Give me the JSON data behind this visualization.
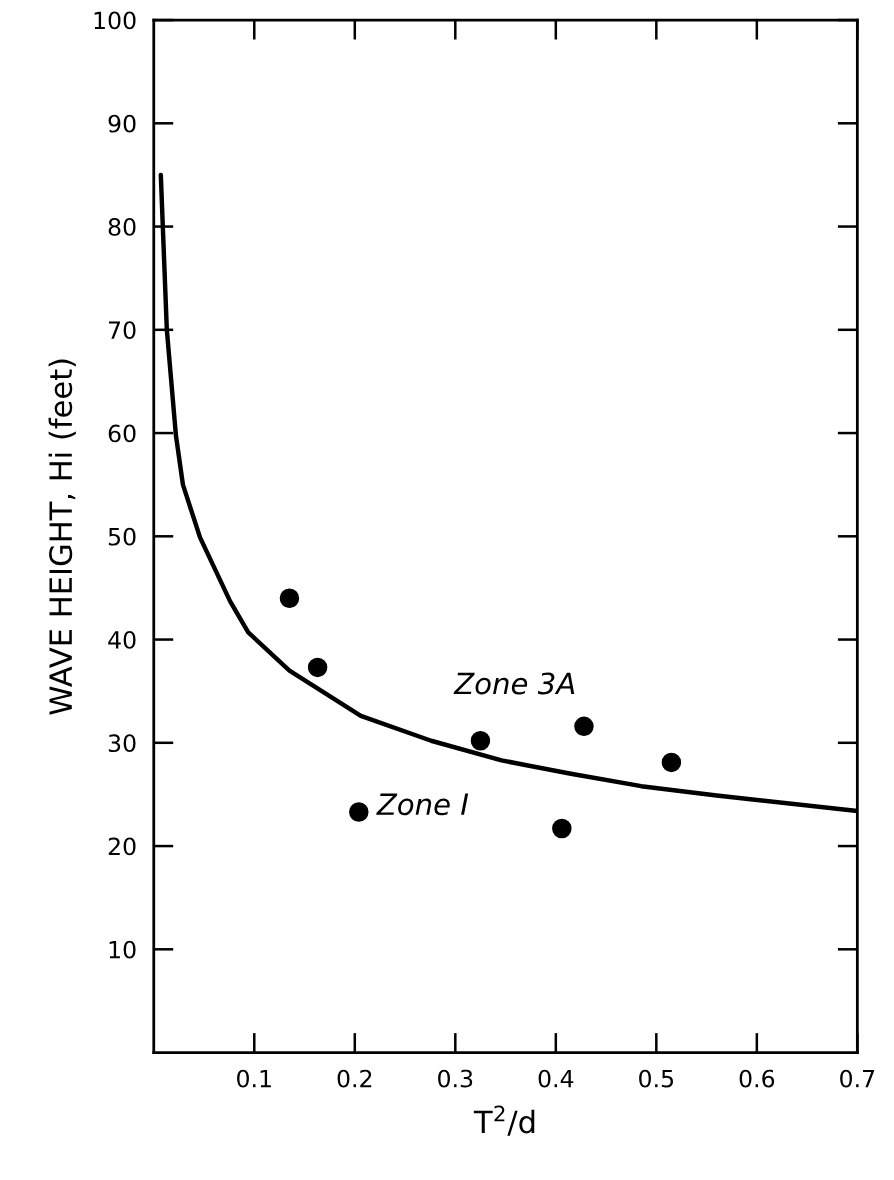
{
  "chart_data": {
    "type": "scatter",
    "xlabel": "T$^{2}$/d",
    "ylabel": "WAVE HEIGHT, Hi (feet)",
    "xlim": [
      0,
      0.7
    ],
    "ylim": [
      0,
      100
    ],
    "xticks": [
      0.1,
      0.2,
      0.3,
      0.4,
      0.5,
      0.6,
      0.7
    ],
    "yticks": [
      10,
      20,
      30,
      40,
      50,
      60,
      70,
      80,
      90,
      100
    ],
    "series": [
      {
        "color": "#000000",
        "marker": "circle",
        "x": [
          0.135,
          0.163,
          0.204,
          0.325,
          0.406,
          0.428,
          0.515
        ],
        "values": [
          44.0,
          37.3,
          23.3,
          30.2,
          21.7,
          31.6,
          28.1
        ]
      },
      {
        "type": "line",
        "color": "#000000",
        "line_style": "solid",
        "x": [
          0.007,
          0.013,
          0.022,
          0.029,
          0.046,
          0.076,
          0.094,
          0.135,
          0.206,
          0.276,
          0.346,
          0.415,
          0.485,
          0.56,
          0.7
        ],
        "values": [
          85,
          70,
          59.8,
          55,
          49.9,
          43.7,
          40.7,
          37.0,
          32.6,
          30.2,
          28.3,
          27.0,
          25.8,
          24.9,
          23.4
        ]
      }
    ],
    "annotations": [
      "Zone 3A",
      "Zone I"
    ]
  }
}
